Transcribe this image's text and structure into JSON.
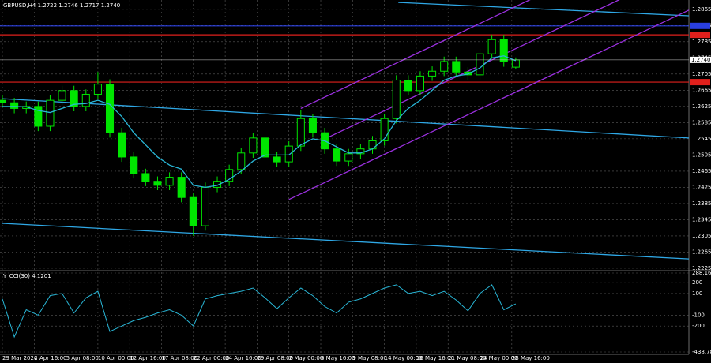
{
  "chart_data": [
    {
      "type": "candlestick",
      "title": "GBPUSD,H4  1.2722 1.2746 1.2717 1.2740",
      "last_price_label": "1.2740",
      "x": [
        0,
        6,
        12,
        18,
        24,
        30,
        36,
        42,
        48,
        54,
        60,
        66,
        72,
        78,
        84,
        90,
        96,
        102,
        108,
        114,
        120,
        126,
        132,
        138,
        144,
        150,
        156,
        162,
        168,
        174,
        180,
        186,
        192,
        198,
        204,
        210,
        216,
        222,
        228,
        234,
        240,
        246,
        252,
        258
      ],
      "open": [
        1.264,
        1.2634,
        1.262,
        1.2625,
        1.2576,
        1.264,
        1.2664,
        1.2625,
        1.2655,
        1.268,
        1.256,
        1.25,
        1.2459,
        1.244,
        1.243,
        1.245,
        1.24,
        1.233,
        1.2425,
        1.244,
        1.2469,
        1.251,
        1.2547,
        1.25,
        1.2488,
        1.2527,
        1.2595,
        1.256,
        1.252,
        1.249,
        1.2508,
        1.252,
        1.254,
        1.2595,
        1.269,
        1.2664,
        1.27,
        1.2712,
        1.2736,
        1.271,
        1.2703,
        1.2755,
        1.279,
        1.2722
      ],
      "high": [
        1.2652,
        1.2646,
        1.2637,
        1.2637,
        1.2652,
        1.2676,
        1.2676,
        1.2667,
        1.271,
        1.2692,
        1.2572,
        1.2512,
        1.2471,
        1.2452,
        1.2462,
        1.2462,
        1.2412,
        1.2437,
        1.2452,
        1.2481,
        1.2522,
        1.2559,
        1.2559,
        1.2512,
        1.2539,
        1.2615,
        1.2607,
        1.2572,
        1.2532,
        1.252,
        1.2532,
        1.2552,
        1.2607,
        1.2702,
        1.2702,
        1.2712,
        1.2724,
        1.2748,
        1.2748,
        1.2722,
        1.2767,
        1.2802,
        1.2802,
        1.2746
      ],
      "low": [
        1.2622,
        1.2608,
        1.2608,
        1.2564,
        1.2564,
        1.2628,
        1.2613,
        1.2613,
        1.2643,
        1.2548,
        1.2488,
        1.2447,
        1.2428,
        1.2418,
        1.2418,
        1.2388,
        1.2305,
        1.2318,
        1.2413,
        1.2428,
        1.2457,
        1.2498,
        1.2488,
        1.2476,
        1.2476,
        1.2515,
        1.2548,
        1.2508,
        1.2478,
        1.2478,
        1.2496,
        1.2508,
        1.2528,
        1.2583,
        1.2652,
        1.2652,
        1.2688,
        1.27,
        1.2698,
        1.2691,
        1.2691,
        1.2743,
        1.2723,
        1.2717
      ],
      "close": [
        1.2634,
        1.262,
        1.2625,
        1.2576,
        1.264,
        1.2664,
        1.2625,
        1.2655,
        1.268,
        1.256,
        1.25,
        1.2459,
        1.244,
        1.243,
        1.245,
        1.24,
        1.233,
        1.2425,
        1.244,
        1.2469,
        1.251,
        1.2547,
        1.25,
        1.2488,
        1.2527,
        1.2595,
        1.256,
        1.252,
        1.249,
        1.2508,
        1.252,
        1.254,
        1.2595,
        1.269,
        1.2664,
        1.27,
        1.2712,
        1.2736,
        1.271,
        1.2703,
        1.2755,
        1.279,
        1.2735,
        1.274
      ],
      "color": "#00e600",
      "ma": {
        "color": "#29b6d6",
        "values": [
          1.2625,
          1.2625,
          1.2624,
          1.2615,
          1.261,
          1.262,
          1.263,
          1.2632,
          1.264,
          1.263,
          1.26,
          1.256,
          1.253,
          1.25,
          1.248,
          1.247,
          1.243,
          1.2425,
          1.243,
          1.2445,
          1.2465,
          1.249,
          1.2505,
          1.2505,
          1.2505,
          1.253,
          1.2545,
          1.254,
          1.2525,
          1.251,
          1.251,
          1.252,
          1.2545,
          1.259,
          1.262,
          1.264,
          1.2665,
          1.269,
          1.27,
          1.2705,
          1.272,
          1.2745,
          1.275,
          1.2738
        ]
      },
      "levels": [
        {
          "value": 1.2824,
          "color": "#2a3fe0"
        },
        {
          "value": 1.2802,
          "color": "#e0201c"
        },
        {
          "value": 1.2685,
          "color": "#e0201c"
        }
      ],
      "trendlines": [
        {
          "color": "#2fa8e6",
          "points": [
            [
              0,
              1.2644
            ],
            [
              345,
              1.2547
            ]
          ]
        },
        {
          "color": "#2fa8e6",
          "points": [
            [
              0,
              1.2336
            ],
            [
              345,
              1.2248
            ]
          ]
        },
        {
          "color": "#2fa8e6",
          "points": [
            [
              199,
              1.2882
            ],
            [
              345,
              1.2849
            ]
          ]
        },
        {
          "color": "#9b30e0",
          "points": [
            [
              144,
              1.2395
            ],
            [
              345,
              1.2863
            ]
          ]
        },
        {
          "color": "#9b30e0",
          "points": [
            [
              160,
              1.254
            ],
            [
              345,
              1.297
            ]
          ]
        },
        {
          "color": "#9b30e0",
          "points": [
            [
              150,
              1.262
            ],
            [
              300,
              1.297
            ]
          ]
        }
      ],
      "xlim": [
        0,
        345
      ],
      "ylim": [
        1.2221,
        1.2888
      ],
      "xticks": [
        {
          "value": 0,
          "label": "29 Mar 2024"
        },
        {
          "value": 16,
          "label": "2 Apr 16:00"
        },
        {
          "value": 32,
          "label": "5 Apr 08:00"
        },
        {
          "value": 48,
          "label": "10 Apr 00:00"
        },
        {
          "value": 64,
          "label": "12 Apr 16:00"
        },
        {
          "value": 80,
          "label": "17 Apr 08:00"
        },
        {
          "value": 96,
          "label": "22 Apr 00:00"
        },
        {
          "value": 112,
          "label": "24 Apr 16:00"
        },
        {
          "value": 128,
          "label": "29 Apr 08:00"
        },
        {
          "value": 144,
          "label": "2 May 00:00"
        },
        {
          "value": 160,
          "label": "6 May 16:00"
        },
        {
          "value": 176,
          "label": "9 May 08:00"
        },
        {
          "value": 192,
          "label": "14 May 00:00"
        },
        {
          "value": 208,
          "label": "16 May 16:00"
        },
        {
          "value": 224,
          "label": "21 May 08:00"
        },
        {
          "value": 240,
          "label": "24 May 00:00"
        },
        {
          "value": 256,
          "label": "28 May 16:00"
        }
      ],
      "yticks": [
        1.2225,
        1.2265,
        1.2305,
        1.2345,
        1.2385,
        1.2425,
        1.2465,
        1.2505,
        1.2545,
        1.2585,
        1.2625,
        1.2665,
        1.2705,
        1.2745,
        1.2785,
        1.2825,
        1.2865
      ],
      "grid": true
    },
    {
      "type": "line",
      "title": "Y_CCI(30) 4.1201",
      "x": [
        0,
        6,
        12,
        18,
        24,
        30,
        36,
        42,
        48,
        54,
        60,
        66,
        72,
        78,
        84,
        90,
        96,
        102,
        108,
        114,
        120,
        126,
        132,
        138,
        144,
        150,
        156,
        162,
        168,
        174,
        180,
        186,
        192,
        198,
        204,
        210,
        216,
        222,
        228,
        234,
        240,
        246,
        252,
        258
      ],
      "values": [
        50,
        -300,
        -50,
        -100,
        80,
        100,
        -80,
        60,
        120,
        -250,
        -200,
        -150,
        -120,
        -80,
        -50,
        -100,
        -200,
        50,
        80,
        100,
        120,
        150,
        60,
        -40,
        60,
        150,
        80,
        -20,
        -80,
        20,
        50,
        100,
        150,
        180,
        100,
        120,
        80,
        120,
        40,
        -60,
        100,
        180,
        -50,
        4.1201
      ],
      "color": "#29b6d6",
      "xlim": [
        0,
        345
      ],
      "ylim": [
        -438.785,
        288.1654
      ],
      "yticks": [
        288.1654,
        200,
        100,
        -100,
        -200,
        {
          "value": -438.785,
          "label": "-438.7850"
        }
      ],
      "grid": true
    }
  ]
}
